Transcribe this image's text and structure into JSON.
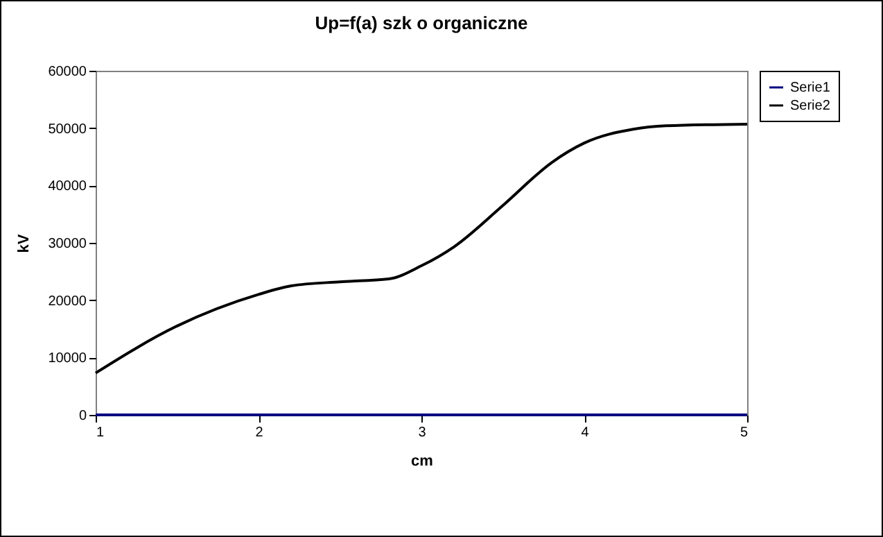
{
  "chart_data": {
    "type": "line",
    "title": "Up=f(a) szk o organiczne",
    "xlabel": "cm",
    "ylabel": "kV",
    "xlim": [
      1,
      5
    ],
    "xticks": [
      1,
      2,
      3,
      4,
      5
    ],
    "ylim": [
      0,
      60000
    ],
    "yticks": [
      0,
      10000,
      20000,
      30000,
      40000,
      50000,
      60000
    ],
    "grid": false,
    "legend": "right",
    "marker": "none",
    "line_style": "solid",
    "series": [
      {
        "name": "Serie1",
        "color": "#000080",
        "x": [
          1,
          2,
          3,
          4,
          5
        ],
        "values": [
          0,
          0,
          0,
          0,
          0
        ]
      },
      {
        "name": "Serie2",
        "color": "#000000",
        "x": [
          1,
          1.5,
          2,
          2.2,
          2.5,
          2.8,
          3,
          3.2,
          3.5,
          3.8,
          4,
          4.3,
          4.5,
          5
        ],
        "values": [
          7300,
          15500,
          21000,
          22500,
          23200,
          23700,
          26000,
          29300,
          36500,
          44000,
          47400,
          49800,
          50400,
          50700
        ]
      }
    ]
  }
}
